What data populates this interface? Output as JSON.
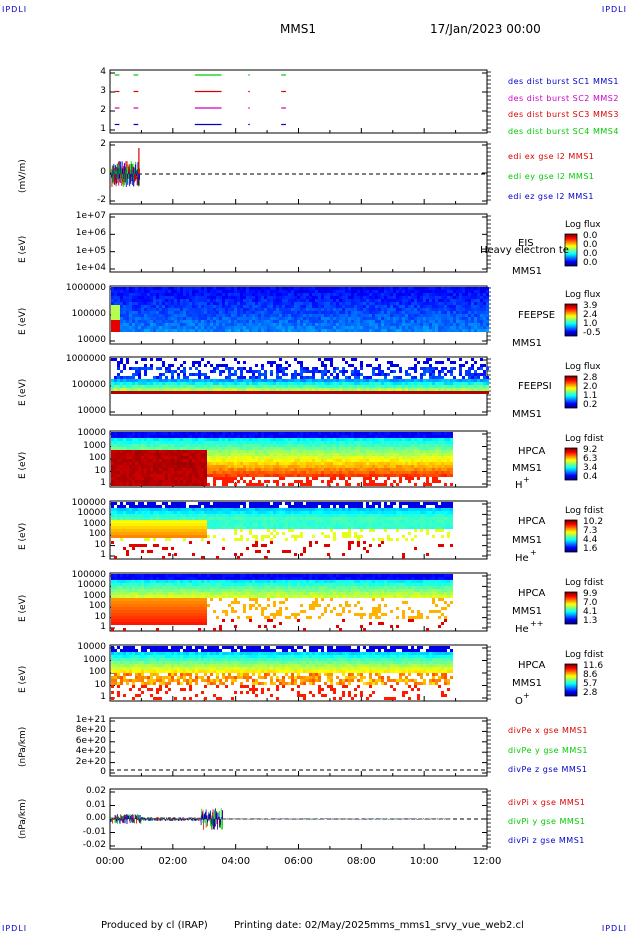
{
  "corner_label": "IPDLI",
  "header": {
    "spacecraft": "MMS1",
    "date": "17/Jan/2023 00:00"
  },
  "footer": {
    "produced_by": "Produced by cl (IRAP)",
    "printing_date": "Printing date: 02/May/2025",
    "file": "mms_mms1_srvy_vue_web2.cl"
  },
  "colors": {
    "red": "#dd0000",
    "green": "#00cc00",
    "blue": "#0000cc",
    "magenta": "#cc00cc"
  },
  "panels": {
    "burst": {
      "y_ticks": [
        "4",
        "3",
        "2",
        "1"
      ],
      "legend": [
        {
          "text": "des dist burst SC1 MMS1",
          "color": "#0000cc"
        },
        {
          "text": "des dist burst SC2 MMS2",
          "color": "#cc00cc"
        },
        {
          "text": "des dist burst SC3 MMS3",
          "color": "#dd0000"
        },
        {
          "text": "des dist burst SC4 MMS4",
          "color": "#00cc00"
        }
      ]
    },
    "edi": {
      "ylabel": "(mV/m)",
      "y_ticks": [
        "2",
        "0",
        "-2"
      ],
      "legend": [
        {
          "text": "edi ex gse l2 MMS1",
          "color": "#dd0000"
        },
        {
          "text": "edi ey gse l2 MMS1",
          "color": "#00cc00"
        },
        {
          "text": "edi ez gse l2 MMS1",
          "color": "#0000cc"
        }
      ]
    },
    "eis": {
      "ylabel": "E (eV)",
      "y_ticks": [
        "1e+07",
        "1e+06",
        "1e+05",
        "1e+04"
      ],
      "inst": "EIS",
      "sc": "MMS1",
      "overlay": "Heavy electron te",
      "cb_title": "Log flux",
      "cb_values": [
        "0.0",
        "0.0",
        "0.0",
        "0.0"
      ]
    },
    "feepse": {
      "ylabel": "E (eV)",
      "y_ticks": [
        "1000000",
        "100000",
        "10000"
      ],
      "inst": "FEEPSE",
      "sc": "MMS1",
      "cb_title": "Log flux",
      "cb_values": [
        "3.9",
        "2.4",
        "1.0",
        "-0.5"
      ]
    },
    "feepsi": {
      "ylabel": "E (eV)",
      "y_ticks": [
        "1000000",
        "100000",
        "10000"
      ],
      "inst": "FEEPSI",
      "sc": "MMS1",
      "cb_title": "Log flux",
      "cb_values": [
        "2.8",
        "2.0",
        "1.1",
        "0.2"
      ]
    },
    "hpca_h": {
      "ylabel": "E (eV)",
      "y_ticks": [
        "10000",
        "1000",
        "100",
        "10",
        "1"
      ],
      "inst": "HPCA",
      "sc": "MMS1",
      "species": "H",
      "charge": "+",
      "cb_title": "Log fdist",
      "cb_values": [
        "9.2",
        "6.3",
        "3.4",
        "0.4"
      ]
    },
    "hpca_he": {
      "ylabel": "E (eV)",
      "y_ticks": [
        "100000",
        "10000",
        "1000",
        "100",
        "10",
        "1"
      ],
      "inst": "HPCA",
      "sc": "MMS1",
      "species": "He",
      "charge": "+",
      "cb_title": "Log fdist",
      "cb_values": [
        "10.2",
        "7.3",
        "4.4",
        "1.6"
      ]
    },
    "hpca_hepp": {
      "ylabel": "E (eV)",
      "y_ticks": [
        "100000",
        "10000",
        "1000",
        "100",
        "10",
        "1"
      ],
      "inst": "HPCA",
      "sc": "MMS1",
      "species": "He",
      "charge": "++",
      "cb_title": "Log fdist",
      "cb_values": [
        "9.9",
        "7.0",
        "4.1",
        "1.3"
      ]
    },
    "hpca_o": {
      "ylabel": "E (eV)",
      "y_ticks": [
        "10000",
        "1000",
        "100",
        "10",
        "1"
      ],
      "inst": "HPCA",
      "sc": "MMS1",
      "species": "O",
      "charge": "+",
      "cb_title": "Log fdist",
      "cb_values": [
        "11.6",
        "8.6",
        "5.7",
        "2.8"
      ]
    },
    "divpe": {
      "ylabel": "(nPa/km)",
      "y_ticks": [
        "1e+21",
        "8e+20",
        "6e+20",
        "4e+20",
        "2e+20",
        "0"
      ],
      "legend": [
        {
          "text": "divPe x gse MMS1",
          "color": "#dd0000"
        },
        {
          "text": "divPe y gse MMS1",
          "color": "#00cc00"
        },
        {
          "text": "divPe z gse MMS1",
          "color": "#0000cc"
        }
      ]
    },
    "divpi": {
      "ylabel": "(nPa/km)",
      "y_ticks": [
        "0.02",
        "0.01",
        "0.00",
        "-0.01",
        "-0.02"
      ],
      "legend": [
        {
          "text": "divPi x gse MMS1",
          "color": "#dd0000"
        },
        {
          "text": "divPi y gse MMS1",
          "color": "#00cc00"
        },
        {
          "text": "divPi z gse MMS1",
          "color": "#0000cc"
        }
      ]
    }
  },
  "chart_data": {
    "type": "heatmap",
    "x_ticks": [
      "00:00",
      "02:00",
      "04:00",
      "06:00",
      "08:00",
      "10:00",
      "12:00"
    ],
    "burst_intervals": [
      [
        0.15,
        0.3
      ],
      [
        0.75,
        0.9
      ],
      [
        2.7,
        3.55
      ],
      [
        4.4,
        4.45
      ],
      [
        5.45,
        5.6
      ]
    ],
    "data_end_hpca_hours": 10.85
  }
}
